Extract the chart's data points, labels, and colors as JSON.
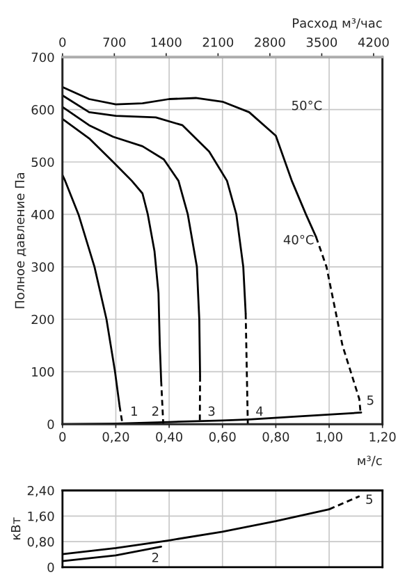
{
  "chart_data": [
    {
      "type": "line",
      "xlabel": "м³/с",
      "ylabel": "Полное давление Па",
      "x2label": "Расход м³/час",
      "xlim": [
        0,
        1.2
      ],
      "xticks": [
        0,
        {
          "value": 0.2,
          "label": "0,20"
        },
        {
          "value": 0.4,
          "label": "0,40"
        },
        {
          "value": 0.6,
          "label": "0,60"
        },
        {
          "value": 0.8,
          "label": "0,80"
        },
        {
          "value": 1.0,
          "label": "1,00"
        },
        {
          "value": 1.2,
          "label": "1,20"
        }
      ],
      "ylim": [
        0,
        700
      ],
      "yticks": [
        0,
        100,
        200,
        300,
        400,
        500,
        600,
        700
      ],
      "x2lim": [
        0,
        4320
      ],
      "x2ticks": [
        0,
        700,
        1400,
        2100,
        2800,
        3500,
        4200
      ],
      "grid": true,
      "series": [
        {
          "color": "#000000",
          "x": [
            0,
            0.01,
            0.06,
            0.12,
            0.165,
            0.197,
            0.214
          ],
          "values": [
            475,
            464,
            400,
            300,
            200,
            100,
            35
          ]
        },
        {
          "color": "#000000",
          "line_style": "dashed",
          "x": [
            0.214,
            0.225
          ],
          "values": [
            35,
            0
          ]
        },
        {
          "color": "#000000",
          "x": [
            0,
            0.1,
            0.19,
            0.26,
            0.3,
            0.32,
            0.345,
            0.36,
            0.365,
            0.37
          ],
          "values": [
            582,
            545,
            500,
            464,
            440,
            400,
            330,
            250,
            150,
            83
          ]
        },
        {
          "color": "#000000",
          "line_style": "dashed",
          "x": [
            0.37,
            0.378
          ],
          "values": [
            83,
            0
          ]
        },
        {
          "color": "#000000",
          "x": [
            0,
            0.1,
            0.19,
            0.3,
            0.38,
            0.435,
            0.47,
            0.504,
            0.513,
            0.516
          ],
          "values": [
            605,
            570,
            548,
            530,
            505,
            464,
            400,
            300,
            200,
            92
          ]
        },
        {
          "color": "#000000",
          "line_style": "dashed",
          "x": [
            0.516,
            0.515
          ],
          "values": [
            92,
            0
          ]
        },
        {
          "color": "#000000",
          "x": [
            0,
            0.1,
            0.2,
            0.35,
            0.45,
            0.55,
            0.617,
            0.652,
            0.678,
            0.687
          ],
          "values": [
            627,
            595,
            588,
            585,
            570,
            520,
            464,
            400,
            300,
            211
          ]
        },
        {
          "color": "#000000",
          "line_style": "dashed",
          "x": [
            0.687,
            0.695
          ],
          "values": [
            211,
            0
          ]
        },
        {
          "color": "#000000",
          "x": [
            0,
            0.1,
            0.2,
            0.3,
            0.4,
            0.5,
            0.6,
            0.7,
            0.8,
            0.86,
            0.913,
            0.951
          ],
          "values": [
            643,
            620,
            610,
            612,
            620,
            622,
            615,
            595,
            550,
            464,
            400,
            357
          ]
        },
        {
          "color": "#000000",
          "line_style": "dashed",
          "x": [
            0.951,
            0.99,
            1.05,
            1.113,
            1.118
          ],
          "values": [
            357,
            300,
            150,
            48,
            21
          ]
        },
        {
          "color": "#000000",
          "x": [
            0,
            0.2,
            0.4,
            0.6,
            0.7,
            0.9,
            1.12
          ],
          "values": [
            0,
            1,
            4,
            7,
            9,
            15,
            22
          ]
        }
      ],
      "annotations": [
        {
          "text": "1",
          "x": 0.225,
          "y": 0
        },
        {
          "text": "2",
          "x": 0.378,
          "y": 0
        },
        {
          "text": "3",
          "x": 0.515,
          "y": 0
        },
        {
          "text": "4",
          "x": 0.695,
          "y": 0
        },
        {
          "text": "5",
          "x": 1.118,
          "y": 21
        },
        {
          "text": "50°C",
          "x": 0.8,
          "y": 550
        },
        {
          "text": "40°C",
          "x": 0.951,
          "y": 357
        }
      ]
    },
    {
      "type": "line",
      "ylabel": "кВт",
      "xlim": [
        0,
        1.2
      ],
      "xticks": [
        {
          "value": 0.2,
          "label": null
        },
        {
          "value": 0.4,
          "label": null
        },
        {
          "value": 0.6,
          "label": null
        },
        {
          "value": 0.8,
          "label": null
        },
        {
          "value": 1.0,
          "label": null
        }
      ],
      "ylim": [
        0,
        2.4
      ],
      "yticks": [
        0,
        {
          "value": 0.8,
          "label": "0,80"
        },
        {
          "value": 1.6,
          "label": "1,60"
        },
        {
          "value": 2.4,
          "label": "2,40"
        }
      ],
      "tick_labels": "y",
      "grid": true,
      "series": [
        {
          "color": "#000000",
          "x": [
            0,
            0.2,
            0.4,
            0.6,
            0.8,
            1.0
          ],
          "values": [
            0.41,
            0.6,
            0.84,
            1.11,
            1.44,
            1.81
          ]
        },
        {
          "color": "#000000",
          "line_style": "dashed",
          "x": [
            1.0,
            1.114
          ],
          "values": [
            1.81,
            2.22
          ]
        },
        {
          "color": "#000000",
          "x": [
            0,
            0.2,
            0.37
          ],
          "values": [
            0.19,
            0.37,
            0.64
          ]
        }
      ],
      "annotations": [
        {
          "text": "2",
          "x": 0.37,
          "y": 0.64
        },
        {
          "text": "5",
          "x": 1.114,
          "y": 2.22
        }
      ]
    }
  ]
}
